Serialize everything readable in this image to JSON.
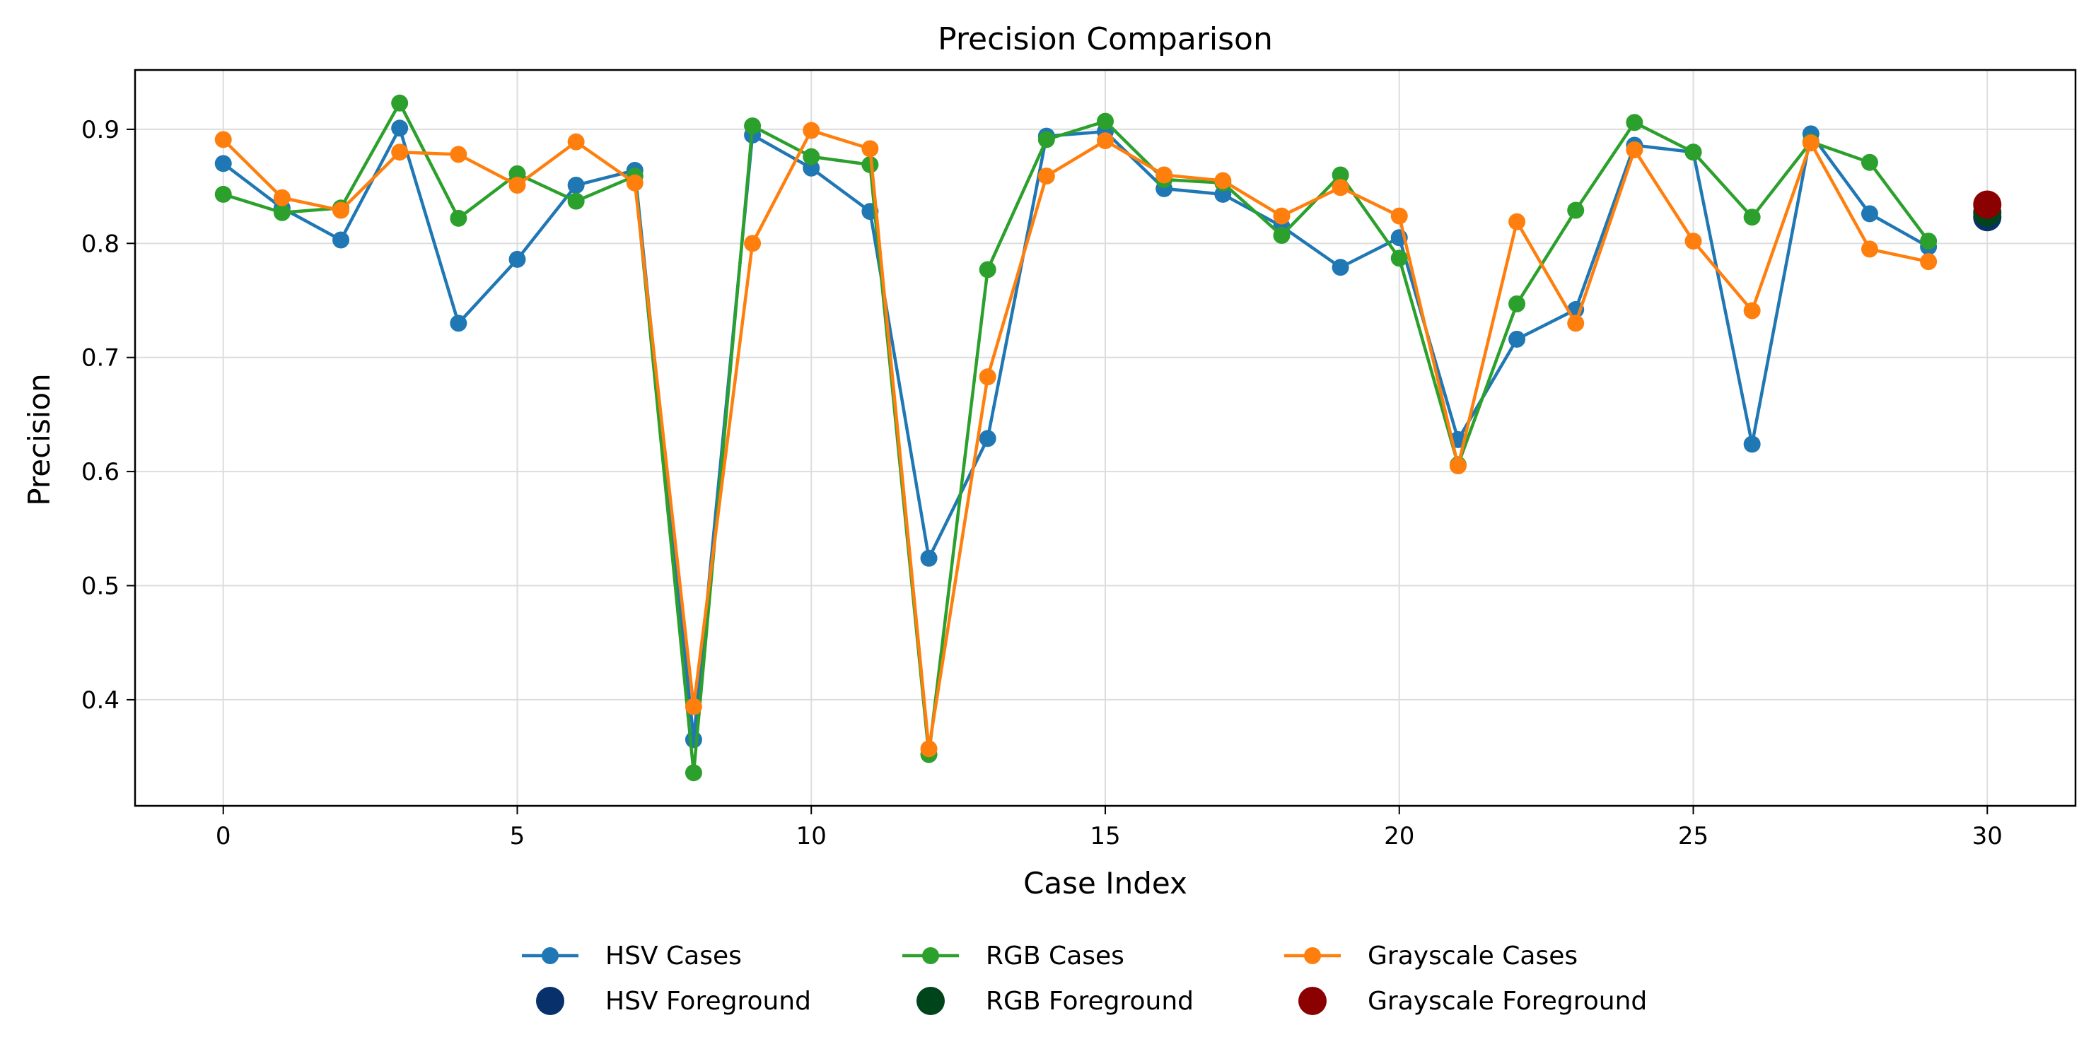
{
  "chart_data": {
    "type": "line",
    "title": "Precision Comparison",
    "xlabel": "Case Index",
    "ylabel": "Precision",
    "xlim": [
      -1.5,
      31.5
    ],
    "ylim": [
      0.307,
      0.952
    ],
    "xticks": [
      0,
      5,
      10,
      15,
      20,
      25,
      30
    ],
    "xtick_labels": [
      "0",
      "5",
      "10",
      "15",
      "20",
      "25",
      "30"
    ],
    "yticks": [
      0.4,
      0.5,
      0.6,
      0.7,
      0.8,
      0.9
    ],
    "ytick_labels": [
      "0.4",
      "0.5",
      "0.6",
      "0.7",
      "0.8",
      "0.9"
    ],
    "grid": true,
    "legend_position": "bottom-center, below the axes, 3 columns",
    "series": [
      {
        "name": "HSV Cases",
        "color": "#1f77b4",
        "x": [
          0,
          1,
          2,
          3,
          4,
          5,
          6,
          7,
          8,
          9,
          10,
          11,
          12,
          13,
          14,
          15,
          16,
          17,
          18,
          19,
          20,
          21,
          22,
          23,
          24,
          25,
          26,
          27,
          28,
          29
        ],
        "values": [
          0.87,
          0.831,
          0.803,
          0.901,
          0.73,
          0.786,
          0.851,
          0.864,
          0.365,
          0.895,
          0.866,
          0.828,
          0.524,
          0.629,
          0.894,
          0.898,
          0.848,
          0.843,
          0.815,
          0.779,
          0.805,
          0.628,
          0.716,
          0.742,
          0.886,
          0.88,
          0.624,
          0.896,
          0.826,
          0.797
        ]
      },
      {
        "name": "RGB Cases",
        "color": "#2ca02c",
        "x": [
          0,
          1,
          2,
          3,
          4,
          5,
          6,
          7,
          8,
          9,
          10,
          11,
          12,
          13,
          14,
          15,
          16,
          17,
          18,
          19,
          20,
          21,
          22,
          23,
          24,
          25,
          26,
          27,
          28,
          29
        ],
        "values": [
          0.843,
          0.827,
          0.831,
          0.923,
          0.822,
          0.861,
          0.837,
          0.859,
          0.336,
          0.903,
          0.876,
          0.869,
          0.352,
          0.777,
          0.891,
          0.907,
          0.856,
          0.853,
          0.807,
          0.86,
          0.787,
          0.606,
          0.747,
          0.829,
          0.906,
          0.88,
          0.823,
          0.889,
          0.871,
          0.802
        ]
      },
      {
        "name": "Grayscale Cases",
        "color": "#ff7f0e",
        "x": [
          0,
          1,
          2,
          3,
          4,
          5,
          6,
          7,
          8,
          9,
          10,
          11,
          12,
          13,
          14,
          15,
          16,
          17,
          18,
          19,
          20,
          21,
          22,
          23,
          24,
          25,
          26,
          27,
          28,
          29
        ],
        "values": [
          0.891,
          0.84,
          0.829,
          0.88,
          0.878,
          0.851,
          0.889,
          0.853,
          0.394,
          0.8,
          0.899,
          0.883,
          0.357,
          0.683,
          0.859,
          0.89,
          0.86,
          0.855,
          0.824,
          0.849,
          0.824,
          0.605,
          0.819,
          0.73,
          0.882,
          0.802,
          0.741,
          0.888,
          0.795,
          0.784
        ]
      }
    ],
    "foreground": [
      {
        "name": "HSV Foreground",
        "color": "#08306b",
        "x": 30,
        "value": 0.823
      },
      {
        "name": "RGB Foreground",
        "color": "#00441b",
        "x": 30,
        "value": 0.827
      },
      {
        "name": "Grayscale Foreground",
        "color": "#8b0000",
        "x": 30,
        "value": 0.834
      }
    ]
  }
}
